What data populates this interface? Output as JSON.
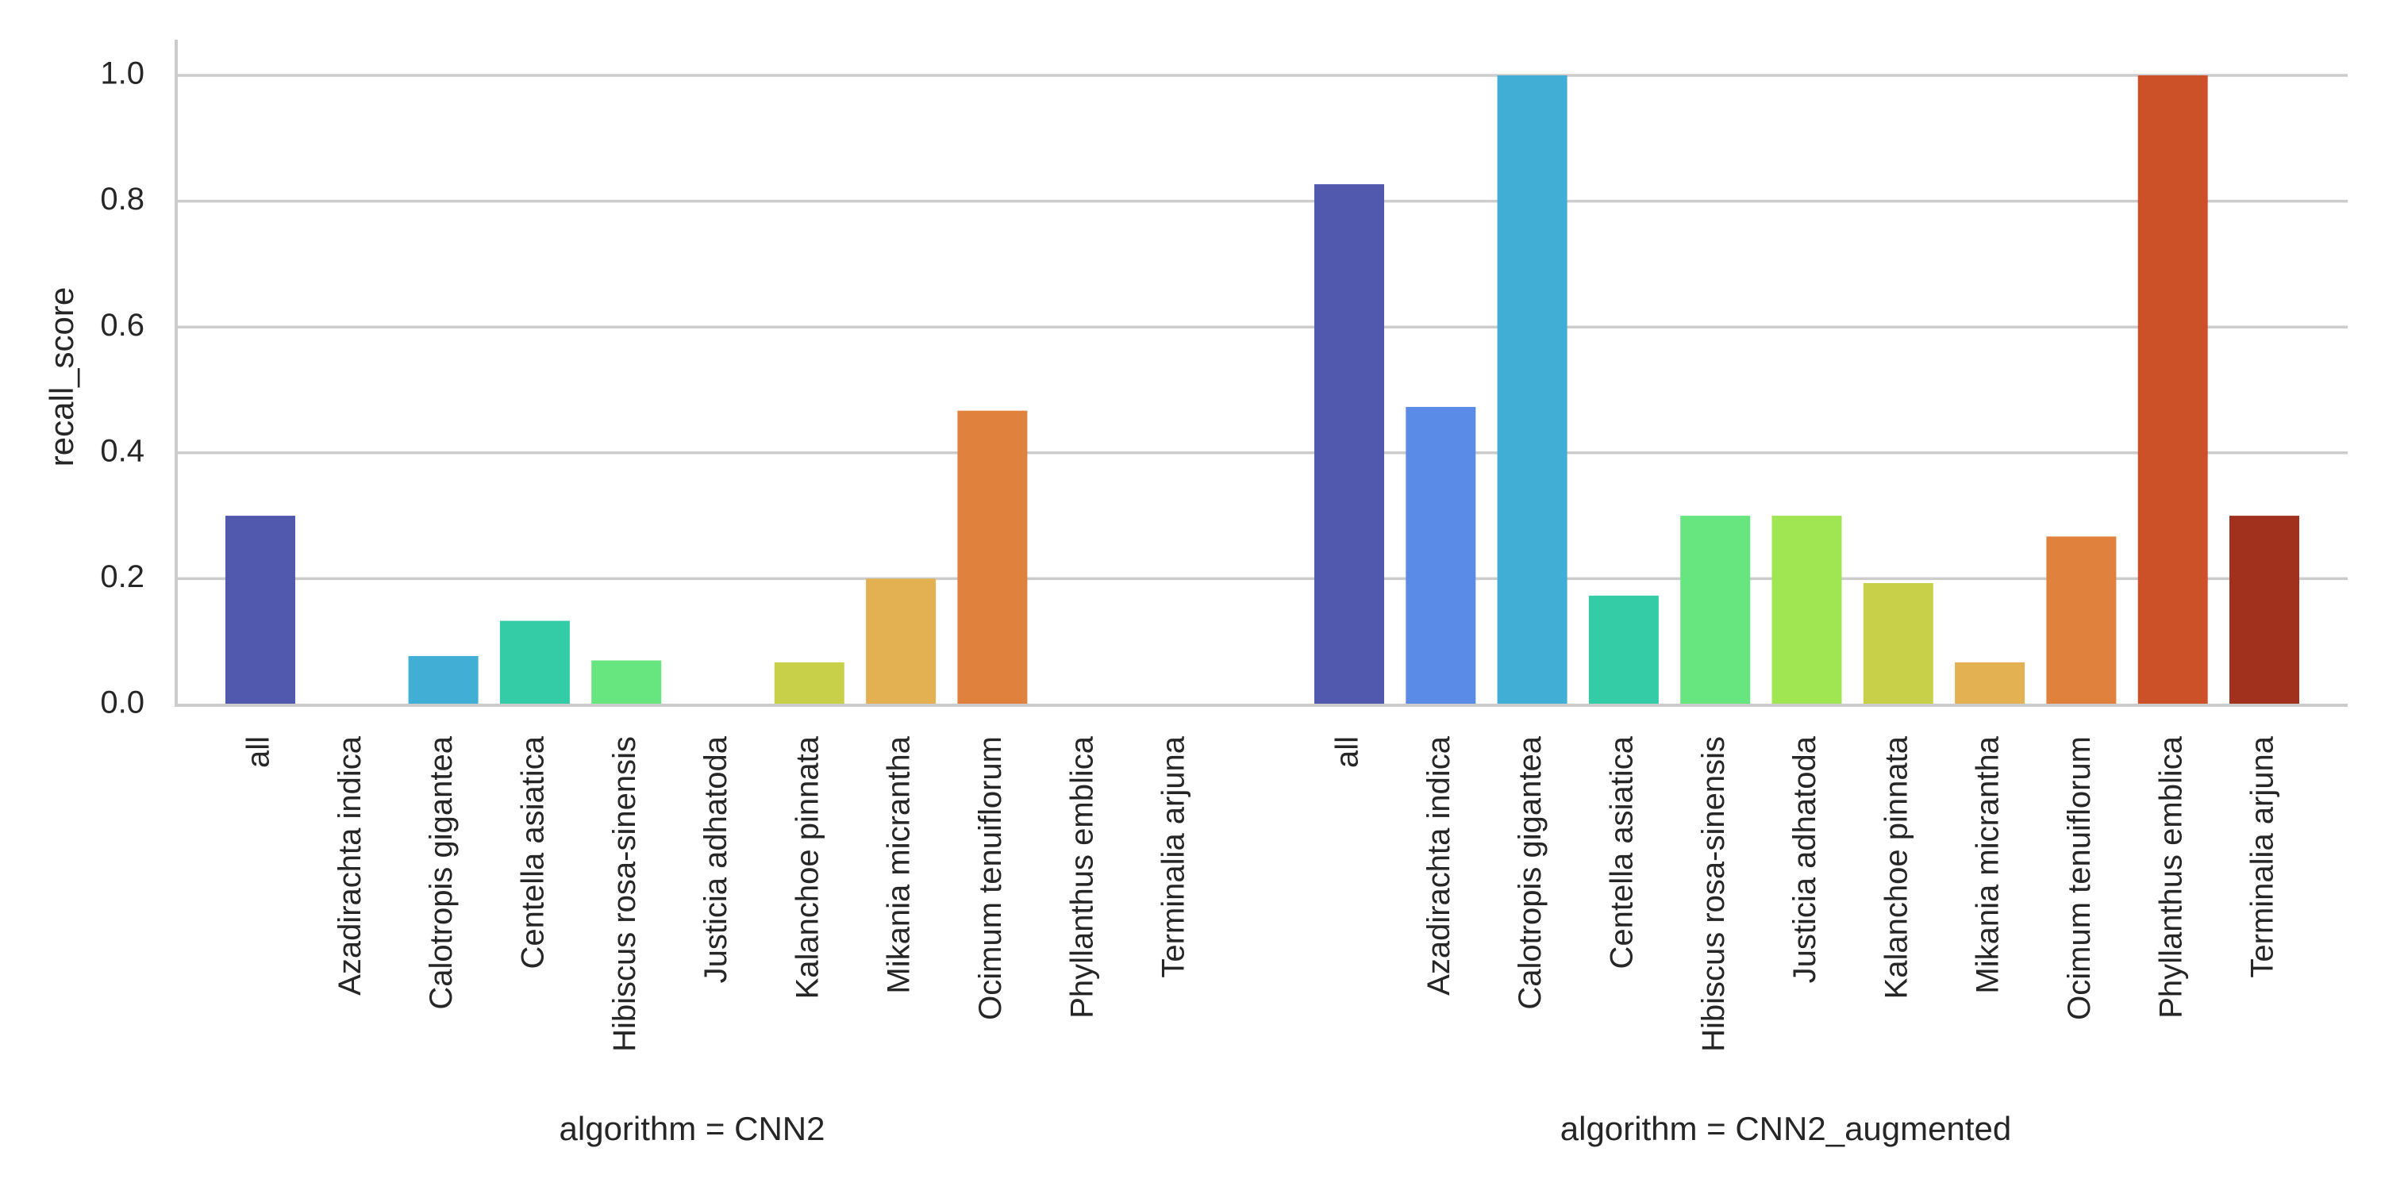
{
  "chart_data": [
    {
      "type": "bar",
      "title": "algorithm = CNN2",
      "ylabel": "recall_score",
      "ylim": [
        0,
        1.05
      ],
      "yticks": [
        "0.0",
        "0.2",
        "0.4",
        "0.6",
        "0.8",
        "1.0"
      ],
      "grid": "horizontal",
      "categories": [
        "all",
        "Azadirachta indica",
        "Calotropis gigantea",
        "Centella asiatica",
        "Hibiscus rosa-sinensis",
        "Justicia adhatoda",
        "Kalanchoe pinnata",
        "Mikania micrantha",
        "Ocimum tenuiflorum",
        "Phyllanthus emblica",
        "Terminalia arjuna"
      ],
      "values": [
        0.3,
        0.0,
        0.077,
        0.133,
        0.07,
        0.0,
        0.067,
        0.2,
        0.467,
        0.0,
        0.0
      ],
      "colors": [
        "#5059ae",
        "#5a8be6",
        "#41aed6",
        "#33cca6",
        "#67e57e",
        "#a0e552",
        "#c8d04a",
        "#e4b152",
        "#e0823e",
        "#cc5128",
        "#a1301d"
      ]
    },
    {
      "type": "bar",
      "title": "algorithm = CNN2_augmented",
      "ylim": [
        0,
        1.05
      ],
      "grid": "horizontal",
      "categories": [
        "all",
        "Azadirachta indica",
        "Calotropis gigantea",
        "Centella asiatica",
        "Hibiscus rosa-sinensis",
        "Justicia adhatoda",
        "Kalanchoe pinnata",
        "Mikania micrantha",
        "Ocimum tenuiflorum",
        "Phyllanthus emblica",
        "Terminalia arjuna"
      ],
      "values": [
        0.827,
        0.473,
        1.0,
        0.173,
        0.3,
        0.3,
        0.193,
        0.067,
        0.267,
        1.0,
        0.3
      ],
      "colors": [
        "#5059ae",
        "#5a8be6",
        "#41aed6",
        "#33cca6",
        "#67e57e",
        "#a0e552",
        "#c8d04a",
        "#e4b152",
        "#e0823e",
        "#cc5128",
        "#a1301d"
      ]
    }
  ]
}
